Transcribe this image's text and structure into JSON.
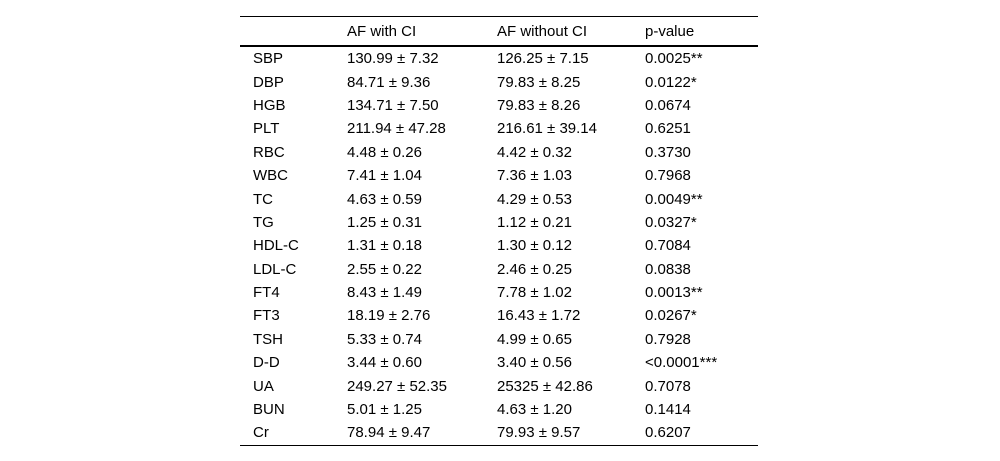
{
  "table": {
    "columns": [
      "",
      "AF with CI",
      "AF without CI",
      "p-value"
    ],
    "rows": [
      {
        "label": "SBP",
        "with_ci": "130.99 ± 7.32",
        "without_ci": "126.25 ± 7.15",
        "p": "0.0025**"
      },
      {
        "label": "DBP",
        "with_ci": "84.71 ± 9.36",
        "without_ci": "79.83 ± 8.25",
        "p": "0.0122*"
      },
      {
        "label": "HGB",
        "with_ci": "134.71 ± 7.50",
        "without_ci": "79.83 ± 8.26",
        "p": "0.0674"
      },
      {
        "label": "PLT",
        "with_ci": "211.94 ± 47.28",
        "without_ci": "216.61 ± 39.14",
        "p": "0.6251"
      },
      {
        "label": "RBC",
        "with_ci": "4.48 ± 0.26",
        "without_ci": "4.42 ± 0.32",
        "p": "0.3730"
      },
      {
        "label": "WBC",
        "with_ci": "7.41 ± 1.04",
        "without_ci": "7.36 ± 1.03",
        "p": "0.7968"
      },
      {
        "label": "TC",
        "with_ci": "4.63 ± 0.59",
        "without_ci": "4.29 ± 0.53",
        "p": "0.0049**"
      },
      {
        "label": "TG",
        "with_ci": "1.25 ± 0.31",
        "without_ci": "1.12 ± 0.21",
        "p": "0.0327*"
      },
      {
        "label": "HDL-C",
        "with_ci": "1.31 ± 0.18",
        "without_ci": "1.30 ± 0.12",
        "p": "0.7084"
      },
      {
        "label": "LDL-C",
        "with_ci": "2.55 ± 0.22",
        "without_ci": "2.46 ± 0.25",
        "p": "0.0838"
      },
      {
        "label": "FT4",
        "with_ci": "8.43 ± 1.49",
        "without_ci": "7.78 ± 1.02",
        "p": "0.0013**"
      },
      {
        "label": "FT3",
        "with_ci": "18.19 ± 2.76",
        "without_ci": "16.43 ± 1.72",
        "p": "0.0267*"
      },
      {
        "label": "TSH",
        "with_ci": "5.33 ± 0.74",
        "without_ci": "4.99 ± 0.65",
        "p": "0.7928"
      },
      {
        "label": "D-D",
        "with_ci": "3.44 ± 0.60",
        "without_ci": "3.40 ± 0.56",
        "p": "<0.0001***"
      },
      {
        "label": "UA",
        "with_ci": "249.27 ± 52.35",
        "without_ci": "25325 ± 42.86",
        "p": "0.7078"
      },
      {
        "label": "BUN",
        "with_ci": "5.01 ± 1.25",
        "without_ci": "4.63 ± 1.20",
        "p": "0.1414"
      },
      {
        "label": "Cr",
        "with_ci": "78.94 ± 9.47",
        "without_ci": "79.93 ± 9.57",
        "p": "0.6207"
      }
    ]
  }
}
